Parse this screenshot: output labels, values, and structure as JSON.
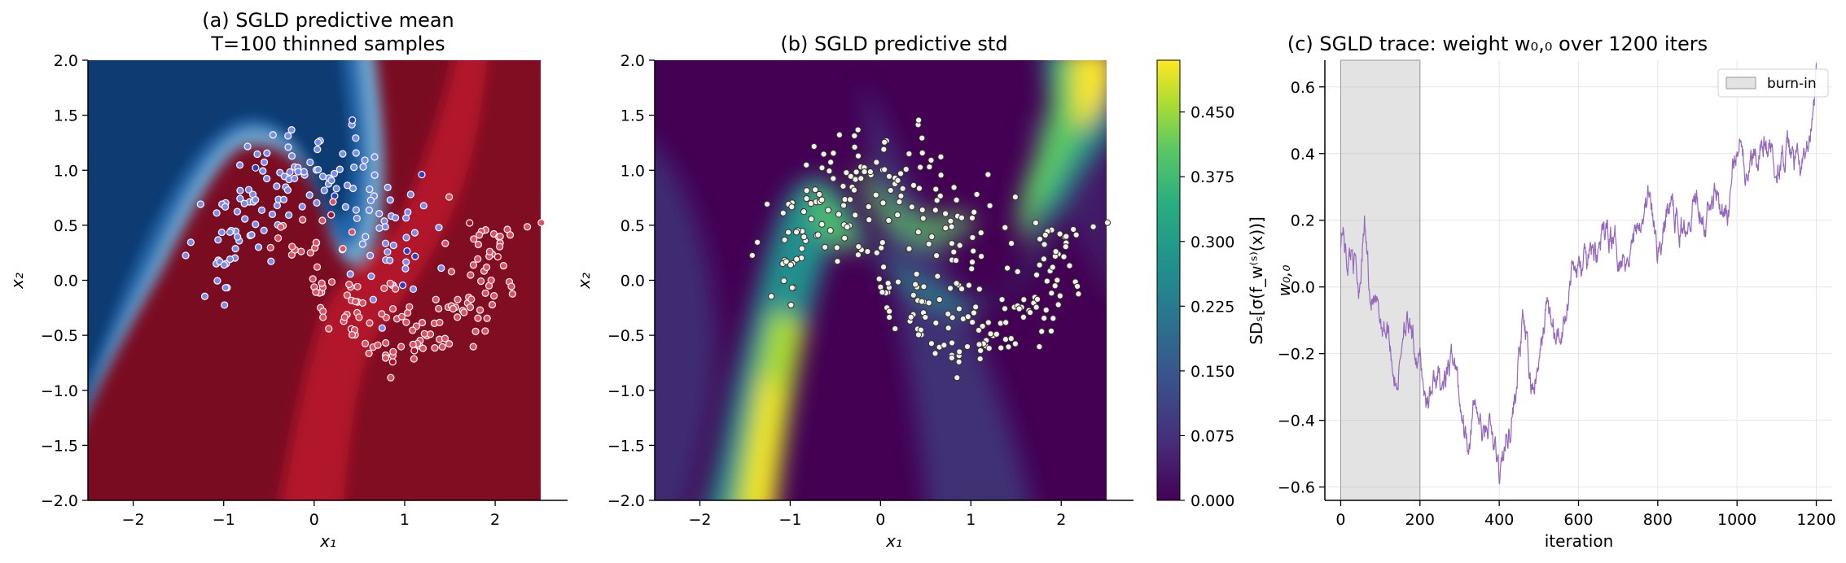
{
  "chart_data": [
    {
      "type": "heatmap",
      "title_line1": "(a) SGLD predictive mean",
      "title_line2": "T=100 thinned samples",
      "xlabel": "x₁",
      "ylabel": "x₂",
      "xlim": [
        -2.5,
        2.8
      ],
      "ylim": [
        -2.0,
        2.0
      ],
      "xticks": [
        "−2",
        "−1",
        "0",
        "1",
        "2"
      ],
      "yticks": [
        "−2.0",
        "−1.5",
        "−1.0",
        "−0.5",
        "0.0",
        "0.5",
        "1.0",
        "1.5",
        "2.0"
      ],
      "colormap": "RdBu_r",
      "class0_color": "#7b8cf0",
      "class1_color": "#e05060",
      "misclassified_blue": "#2c3fc0",
      "misclassified_red": "#b0102a"
    },
    {
      "type": "heatmap",
      "title": "(b) SGLD predictive std",
      "xlabel": "x₁",
      "ylabel": "x₂",
      "xlim": [
        -2.5,
        2.8
      ],
      "ylim": [
        -2.0,
        2.0
      ],
      "xticks": [
        "−2",
        "−1",
        "0",
        "1",
        "2"
      ],
      "yticks": [
        "−2.0",
        "−1.5",
        "−1.0",
        "−0.5",
        "0.0",
        "0.5",
        "1.0",
        "1.5",
        "2.0"
      ],
      "colormap": "viridis",
      "colorbar_label": "SDₛ[σ(f_w⁽ˢ⁾(x))]",
      "colorbar_ticks": [
        "0.000",
        "0.075",
        "0.150",
        "0.225",
        "0.300",
        "0.375",
        "0.450"
      ],
      "colorbar_range": [
        0,
        0.51
      ]
    },
    {
      "type": "line",
      "title": "(c) SGLD trace: weight w₀,₀ over 1200 iters",
      "xlabel": "iteration",
      "ylabel": "w₀,₀",
      "xlim": [
        -40,
        1240
      ],
      "ylim": [
        -0.64,
        0.68
      ],
      "xticks": [
        "0",
        "200",
        "400",
        "600",
        "800",
        "1000",
        "1200"
      ],
      "yticks": [
        "−0.6",
        "−0.4",
        "−0.2",
        "0.0",
        "0.2",
        "0.4",
        "0.6"
      ],
      "line_color": "#9467bd",
      "burnin": [
        0,
        200
      ],
      "legend": "burn-in",
      "legend_position": "top-right",
      "grid": true,
      "anchors": [
        [
          0,
          0.15
        ],
        [
          5,
          0.19
        ],
        [
          15,
          0.08
        ],
        [
          30,
          0.12
        ],
        [
          45,
          0.0
        ],
        [
          60,
          0.19
        ],
        [
          75,
          -0.02
        ],
        [
          95,
          -0.1
        ],
        [
          120,
          -0.12
        ],
        [
          140,
          -0.3
        ],
        [
          150,
          -0.22
        ],
        [
          160,
          -0.08
        ],
        [
          180,
          -0.18
        ],
        [
          200,
          -0.22
        ],
        [
          215,
          -0.34
        ],
        [
          240,
          -0.28
        ],
        [
          265,
          -0.3
        ],
        [
          285,
          -0.2
        ],
        [
          300,
          -0.33
        ],
        [
          320,
          -0.45
        ],
        [
          340,
          -0.35
        ],
        [
          360,
          -0.46
        ],
        [
          375,
          -0.4
        ],
        [
          400,
          -0.57
        ],
        [
          420,
          -0.45
        ],
        [
          440,
          -0.33
        ],
        [
          460,
          -0.1
        ],
        [
          480,
          -0.3
        ],
        [
          500,
          -0.25
        ],
        [
          520,
          -0.05
        ],
        [
          545,
          -0.18
        ],
        [
          560,
          -0.12
        ],
        [
          580,
          0.05
        ],
        [
          610,
          0.05
        ],
        [
          640,
          0.1
        ],
        [
          680,
          0.17
        ],
        [
          705,
          0.1
        ],
        [
          730,
          0.12
        ],
        [
          750,
          0.2
        ],
        [
          775,
          0.28
        ],
        [
          800,
          0.1
        ],
        [
          830,
          0.25
        ],
        [
          860,
          0.18
        ],
        [
          900,
          0.3
        ],
        [
          920,
          0.22
        ],
        [
          950,
          0.3
        ],
        [
          975,
          0.2
        ],
        [
          1000,
          0.42
        ],
        [
          1010,
          0.5
        ],
        [
          1025,
          0.32
        ],
        [
          1060,
          0.45
        ],
        [
          1100,
          0.38
        ],
        [
          1140,
          0.4
        ],
        [
          1160,
          0.35
        ],
        [
          1185,
          0.42
        ],
        [
          1200,
          0.62
        ]
      ]
    }
  ]
}
